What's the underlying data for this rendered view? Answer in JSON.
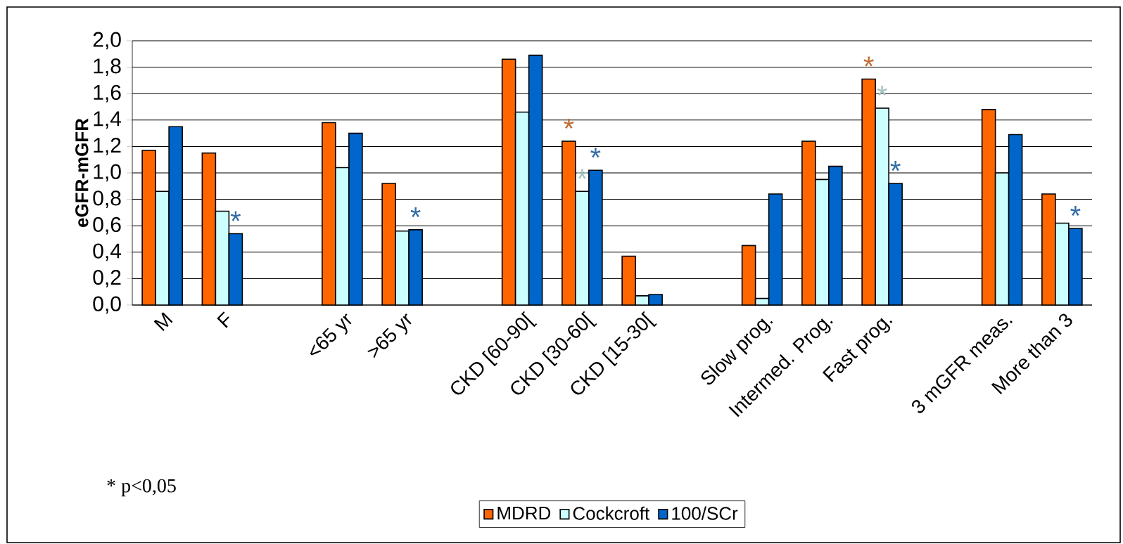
{
  "chart_data": {
    "type": "bar",
    "ylabel": "eGFR-mGFR",
    "categories": [
      "M",
      "F",
      null,
      "<65 yr",
      ">65 yr",
      null,
      "CKD [60-90[",
      "CKD [30-60[",
      "CKD [15-30[",
      null,
      "Slow prog.",
      "Intermed. Prog.",
      "Fast prog.",
      null,
      "3 mGFR meas.",
      "More than 3"
    ],
    "series": [
      {
        "name": "MDRD",
        "color": "#ff6600",
        "values": [
          1.17,
          1.15,
          null,
          1.38,
          0.92,
          null,
          1.86,
          1.24,
          0.37,
          null,
          0.45,
          1.24,
          1.71,
          null,
          1.48,
          0.84
        ],
        "value_labels": [
          null,
          null,
          null,
          null,
          null,
          null,
          null,
          "*",
          null,
          null,
          null,
          null,
          "*",
          null,
          null,
          null
        ]
      },
      {
        "name": "Cockcroft",
        "color": "#ccffff",
        "values": [
          0.86,
          0.71,
          null,
          1.04,
          0.56,
          null,
          1.46,
          0.86,
          0.07,
          null,
          0.05,
          0.95,
          1.49,
          null,
          1.0,
          0.62
        ],
        "value_labels": [
          null,
          null,
          null,
          null,
          null,
          null,
          null,
          "*",
          null,
          null,
          null,
          null,
          "*",
          null,
          null,
          null
        ]
      },
      {
        "name": "100/SCr",
        "color": "#0066cc",
        "values": [
          1.35,
          0.54,
          null,
          1.3,
          0.57,
          null,
          1.89,
          1.02,
          0.08,
          null,
          0.84,
          1.05,
          0.92,
          null,
          1.29,
          0.58
        ],
        "value_labels": [
          null,
          "*",
          null,
          null,
          "*",
          null,
          null,
          "*",
          null,
          null,
          null,
          null,
          "*",
          null,
          null,
          "*"
        ]
      }
    ],
    "ylim": [
      0,
      2.0
    ],
    "yticks": [
      {
        "value": 0,
        "label": "0,0"
      },
      {
        "value": 0.2,
        "label": "0,2"
      },
      {
        "value": 0.4,
        "label": "0,4"
      },
      {
        "value": 0.6,
        "label": "0,6"
      },
      {
        "value": 0.8,
        "label": "0,8"
      },
      {
        "value": 1.0,
        "label": "1,0"
      },
      {
        "value": 1.2,
        "label": "1,2"
      },
      {
        "value": 1.4,
        "label": "1,4"
      },
      {
        "value": 1.6,
        "label": "1,6"
      },
      {
        "value": 1.8,
        "label": "1,8"
      },
      {
        "value": 2.0,
        "label": "2,0"
      }
    ],
    "grid": "y",
    "legend": "bottom",
    "annotations": [
      "* p<0,05"
    ]
  }
}
